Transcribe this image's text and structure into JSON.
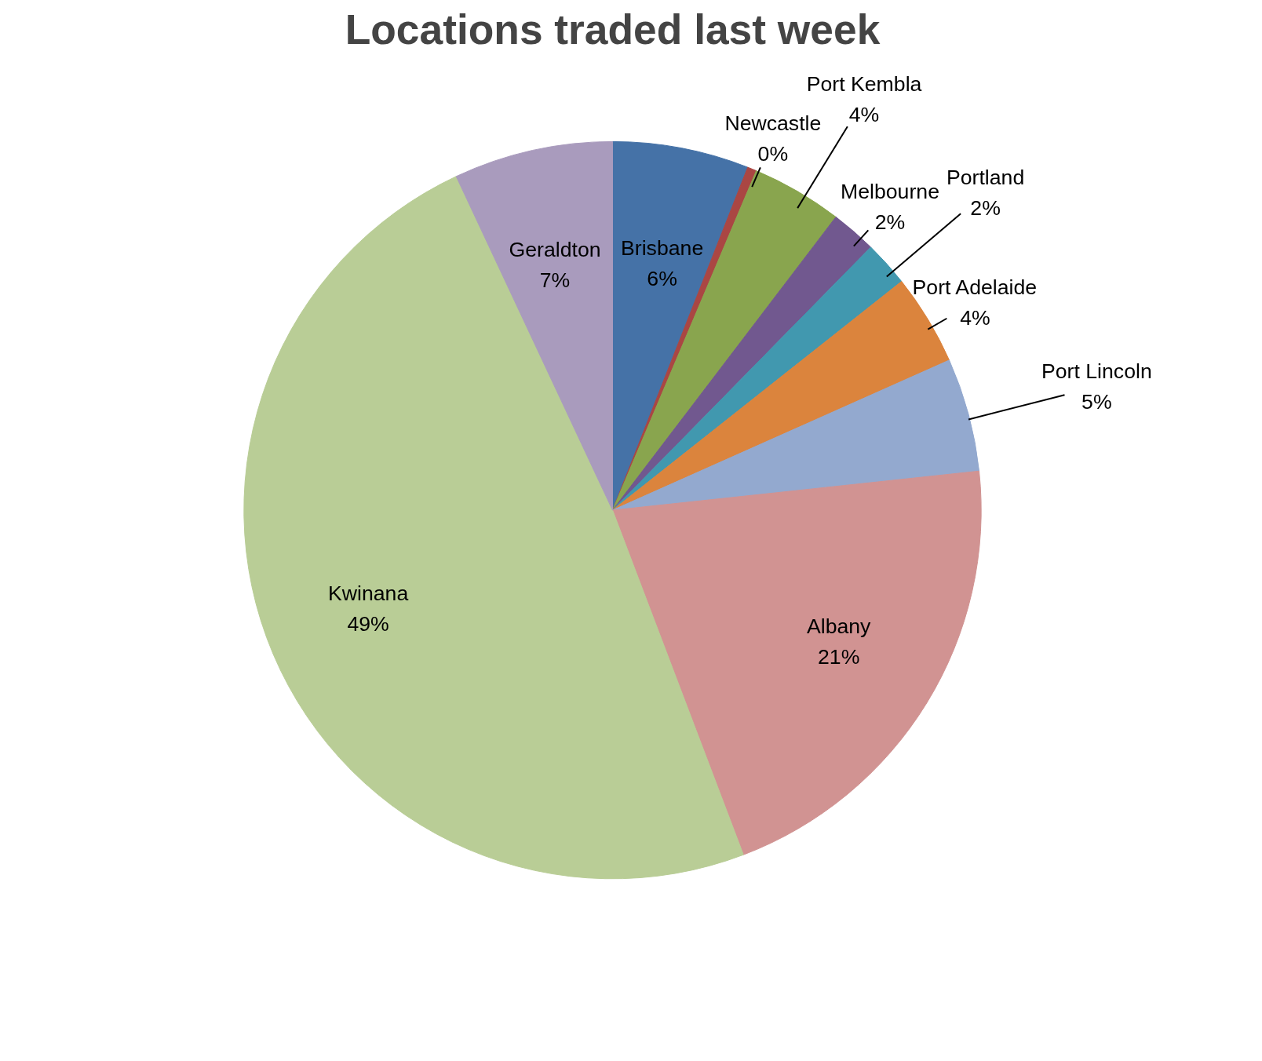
{
  "chart_data": {
    "type": "pie",
    "title": "Locations traded last week",
    "categories": [
      "Brisbane",
      "Newcastle",
      "Port Kembla",
      "Melbourne",
      "Portland",
      "Port Adelaide",
      "Port Lincoln",
      "Albany",
      "Kwinana",
      "Geraldton"
    ],
    "values": [
      6,
      0.4,
      4,
      2,
      2,
      4,
      5,
      21,
      49,
      7
    ],
    "value_labels": [
      "6%",
      "0%",
      "4%",
      "2%",
      "2%",
      "4%",
      "5%",
      "21%",
      "49%",
      "7%"
    ],
    "colors": [
      "#4572a7",
      "#aa4643",
      "#89a54e",
      "#71588f",
      "#4198af",
      "#db843d",
      "#93a9cf",
      "#d19392",
      "#b9cd96",
      "#a99bbd"
    ],
    "legend": false
  }
}
